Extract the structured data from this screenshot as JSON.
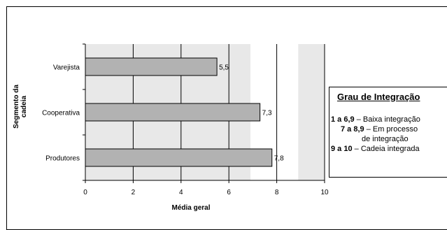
{
  "chart_data": {
    "type": "bar",
    "orientation": "horizontal",
    "categories": [
      "Varejista",
      "Cooperativa",
      "Produtores"
    ],
    "values": [
      5.5,
      7.3,
      7.8
    ],
    "value_labels": [
      "5,5",
      "7,3",
      "7,8"
    ],
    "xlabel": "Média geral",
    "ylabel": "Segmento da cadeia",
    "xlim": [
      0,
      10
    ],
    "xticks": [
      "0",
      "2",
      "4",
      "6",
      "8",
      "10"
    ],
    "grid": true,
    "bands": [
      {
        "from": 6.9,
        "to": 8.9,
        "color": "#ffffff"
      },
      {
        "from": 8.9,
        "to": 10,
        "color": "#e8e8e8"
      }
    ]
  },
  "legend": {
    "title": "Grau de Integração",
    "items": [
      {
        "range": "1 a 6,9",
        "text": " – Baixa integração"
      },
      {
        "range": "7 a 8,9",
        "text": " – Em processo"
      },
      {
        "range": "",
        "text": "de integração"
      },
      {
        "range": "9 a 10",
        "text": " – Cadeia integrada"
      }
    ]
  },
  "colors": {
    "bar_fill": "#b2b2b2",
    "bar_stroke": "#000000",
    "plot_background": "#e8e8e8"
  }
}
